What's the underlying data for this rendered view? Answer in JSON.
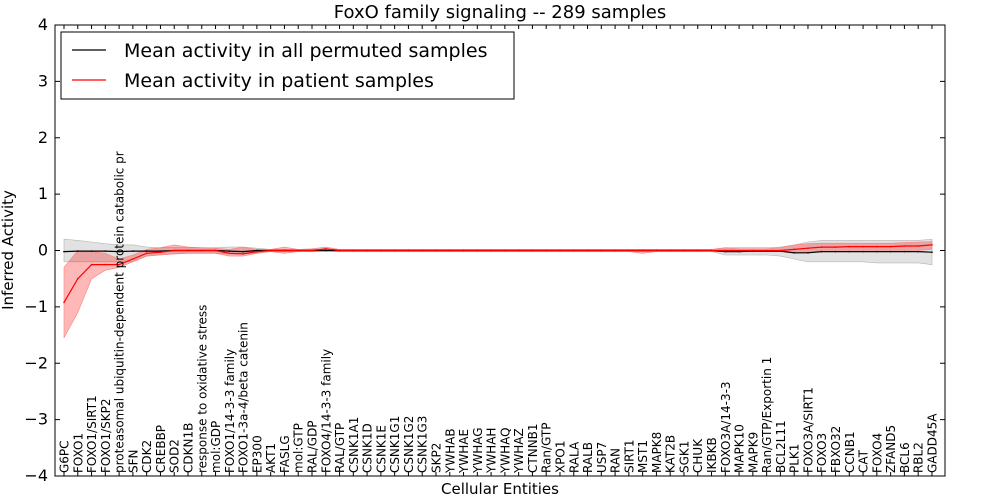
{
  "chart_data": {
    "type": "line",
    "title": "FoxO family signaling -- 289 samples",
    "xlabel": "Cellular Entities",
    "ylabel": "Inferred Activity",
    "ylim": [
      -4,
      4
    ],
    "yticks": [
      -4,
      -3,
      -2,
      -1,
      0,
      1,
      2,
      3,
      4
    ],
    "categories": [
      "G6PC",
      "FOXO1",
      "FOXO1/SIRT1",
      "FOXO1/SKP2",
      "proteasomal ubiquitin-dependent protein catabolic process",
      "SFN",
      "CDK2",
      "CREBBP",
      "SOD2",
      "CDKN1B",
      "response to oxidative stress",
      "mol:GDP",
      "FOXO1/14-3-3 family",
      "FOXO1-3a-4/beta catenin",
      "EP300",
      "AKT1",
      "FASLG",
      "mol:GTP",
      "RAL/GDP",
      "FOXO4/14-3-3 family",
      "RAL/GTP",
      "CSNK1A1",
      "CSNK1D",
      "CSNK1E",
      "CSNK1G1",
      "CSNK1G2",
      "CSNK1G3",
      "SKP2",
      "YWHAB",
      "YWHAE",
      "YWHAG",
      "YWHAH",
      "YWHAQ",
      "YWHAZ",
      "CTNNB1",
      "Ran/GTP",
      "XPO1",
      "RALA",
      "RALB",
      "USP7",
      "RAN",
      "SIRT1",
      "MST1",
      "MAPK8",
      "KAT2B",
      "SGK1",
      "CHUK",
      "IKBKB",
      "FOXO3A/14-3-3",
      "MAPK10",
      "MAPK9",
      "Ran/GTP/Exportin 1",
      "BCL2L11",
      "PLK1",
      "FOXO3A/SIRT1",
      "FOXO3",
      "FBXO32",
      "CCNB1",
      "CAT",
      "FOXO4",
      "ZFAND5",
      "BCL6",
      "RBL2",
      "GADD45A"
    ],
    "display_labels": [
      "G6PC",
      "FOXO1",
      "FOXO1/SIRT1",
      "FOXO1/SKP2",
      "proteasomal ubiquitin-dependent protein catabolic pr",
      "SFN",
      "CDK2",
      "CREBBP",
      "SOD2",
      "CDKN1B",
      "response to oxidative stress",
      "mol:GDP",
      "FOXO1/14-3-3 family",
      "FOXO1-3a-4/beta catenin",
      "EP300",
      "AKT1",
      "FASLG",
      "mol:GTP",
      "RAL/GDP",
      "FOXO4/14-3-3 family",
      "RAL/GTP",
      "CSNK1A1",
      "CSNK1D",
      "CSNK1E",
      "CSNK1G1",
      "CSNK1G2",
      "CSNK1G3",
      "SKP2",
      "YWHAB",
      "YWHAE",
      "YWHAG",
      "YWHAH",
      "YWHAQ",
      "YWHAZ",
      "CTNNB1",
      "Ran/GTP",
      "XPO1",
      "RALA",
      "RALB",
      "USP7",
      "RAN",
      "SIRT1",
      "MST1",
      "MAPK8",
      "KAT2B",
      "SGK1",
      "CHUK",
      "IKBKB",
      "FOXO3A/14-3-3",
      "MAPK10",
      "MAPK9",
      "Ran/GTP/Exportin 1",
      "BCL2L11",
      "PLK1",
      "FOXO3A/SIRT1",
      "FOXO3",
      "FBXO32",
      "CCNB1",
      "CAT",
      "FOXO4",
      "ZFAND5",
      "BCL6",
      "RBL2",
      "GADD45A"
    ],
    "series": [
      {
        "name": "Mean activity in all permuted samples",
        "color": "#000000",
        "values": [
          -0.02,
          -0.01,
          -0.01,
          -0.01,
          -0.02,
          -0.01,
          -0.01,
          -0.01,
          0.0,
          0.0,
          0.0,
          0.0,
          -0.01,
          -0.02,
          0.0,
          0.0,
          0.0,
          0.0,
          0.0,
          0.0,
          0.0,
          0.0,
          0.0,
          0.0,
          0.0,
          0.0,
          0.0,
          0.0,
          0.0,
          0.0,
          0.0,
          0.0,
          0.0,
          0.0,
          0.0,
          0.0,
          0.0,
          0.0,
          0.0,
          0.0,
          0.0,
          0.0,
          0.0,
          0.0,
          0.0,
          0.0,
          0.0,
          0.0,
          -0.02,
          -0.02,
          -0.01,
          -0.01,
          -0.01,
          -0.04,
          -0.04,
          -0.02,
          -0.02,
          -0.02,
          -0.02,
          -0.02,
          -0.02,
          -0.02,
          -0.02,
          -0.03
        ],
        "band_lower": [
          -0.2,
          -0.2,
          -0.2,
          -0.2,
          -0.2,
          -0.2,
          -0.1,
          -0.08,
          -0.06,
          -0.05,
          -0.05,
          -0.05,
          -0.06,
          -0.06,
          -0.04,
          -0.02,
          -0.02,
          -0.02,
          -0.02,
          -0.02,
          -0.02,
          -0.02,
          -0.02,
          -0.02,
          -0.02,
          -0.02,
          -0.02,
          -0.02,
          -0.02,
          -0.02,
          -0.02,
          -0.02,
          -0.02,
          -0.02,
          -0.02,
          -0.02,
          -0.02,
          -0.02,
          -0.02,
          -0.02,
          -0.02,
          -0.02,
          -0.02,
          -0.02,
          -0.02,
          -0.02,
          -0.02,
          -0.02,
          -0.08,
          -0.08,
          -0.08,
          -0.08,
          -0.1,
          -0.15,
          -0.2,
          -0.2,
          -0.2,
          -0.2,
          -0.2,
          -0.22,
          -0.22,
          -0.22,
          -0.22,
          -0.25
        ],
        "band_upper": [
          0.2,
          0.18,
          0.15,
          0.12,
          0.1,
          0.1,
          0.06,
          0.05,
          0.05,
          0.05,
          0.05,
          0.05,
          0.06,
          0.06,
          0.04,
          0.02,
          0.02,
          0.02,
          0.02,
          0.02,
          0.02,
          0.02,
          0.02,
          0.02,
          0.02,
          0.02,
          0.02,
          0.02,
          0.02,
          0.02,
          0.02,
          0.02,
          0.02,
          0.02,
          0.02,
          0.02,
          0.02,
          0.02,
          0.02,
          0.02,
          0.02,
          0.02,
          0.02,
          0.02,
          0.02,
          0.02,
          0.02,
          0.02,
          0.05,
          0.05,
          0.05,
          0.05,
          0.06,
          0.1,
          0.15,
          0.18,
          0.18,
          0.18,
          0.18,
          0.18,
          0.18,
          0.18,
          0.18,
          0.2
        ]
      },
      {
        "name": "Mean activity in patient samples",
        "color": "#ff0000",
        "values": [
          -0.92,
          -0.5,
          -0.25,
          -0.25,
          -0.25,
          -0.15,
          -0.05,
          -0.03,
          0.0,
          0.0,
          0.0,
          0.0,
          -0.05,
          -0.06,
          -0.02,
          0.0,
          0.0,
          0.0,
          0.0,
          0.03,
          0.0,
          0.0,
          0.0,
          0.0,
          0.0,
          0.0,
          0.0,
          0.0,
          0.0,
          0.0,
          0.0,
          0.0,
          0.0,
          0.0,
          0.0,
          0.0,
          0.0,
          0.0,
          0.0,
          0.0,
          0.0,
          0.0,
          0.0,
          0.0,
          0.0,
          0.0,
          0.0,
          0.0,
          0.0,
          0.0,
          0.0,
          0.0,
          0.0,
          0.02,
          0.04,
          0.06,
          0.06,
          0.07,
          0.07,
          0.07,
          0.07,
          0.08,
          0.08,
          0.1
        ],
        "band_lower": [
          -1.55,
          -1.1,
          -0.5,
          -0.35,
          -0.3,
          -0.2,
          -0.1,
          -0.08,
          -0.06,
          -0.05,
          -0.05,
          -0.05,
          -0.1,
          -0.1,
          -0.05,
          -0.02,
          -0.05,
          -0.02,
          -0.02,
          0.0,
          -0.02,
          -0.02,
          -0.02,
          -0.02,
          -0.02,
          -0.02,
          -0.02,
          -0.02,
          -0.02,
          -0.02,
          -0.02,
          -0.02,
          -0.02,
          -0.02,
          -0.02,
          -0.02,
          -0.02,
          -0.02,
          -0.02,
          -0.02,
          -0.02,
          -0.02,
          -0.05,
          -0.02,
          -0.02,
          -0.02,
          -0.02,
          -0.02,
          -0.02,
          -0.02,
          -0.02,
          -0.02,
          -0.02,
          -0.05,
          -0.03,
          0.0,
          0.0,
          0.0,
          0.0,
          0.0,
          0.0,
          0.0,
          0.0,
          0.02
        ],
        "band_upper": [
          -0.3,
          0.0,
          -0.02,
          -0.05,
          -0.15,
          -0.08,
          0.02,
          0.05,
          0.1,
          0.06,
          0.05,
          0.04,
          0.02,
          0.06,
          0.02,
          0.02,
          0.06,
          0.02,
          0.03,
          0.06,
          0.02,
          0.02,
          0.02,
          0.02,
          0.02,
          0.02,
          0.02,
          0.02,
          0.02,
          0.02,
          0.02,
          0.02,
          0.02,
          0.02,
          0.02,
          0.02,
          0.02,
          0.02,
          0.02,
          0.02,
          0.02,
          0.02,
          0.02,
          0.02,
          0.02,
          0.02,
          0.02,
          0.02,
          0.05,
          0.03,
          0.03,
          0.03,
          0.05,
          0.1,
          0.12,
          0.13,
          0.13,
          0.13,
          0.13,
          0.13,
          0.13,
          0.14,
          0.15,
          0.16
        ]
      }
    ],
    "legend": {
      "location": "upper-left",
      "entries": [
        "Mean activity in all permuted samples",
        "Mean activity in patient samples"
      ]
    },
    "grid": false
  }
}
